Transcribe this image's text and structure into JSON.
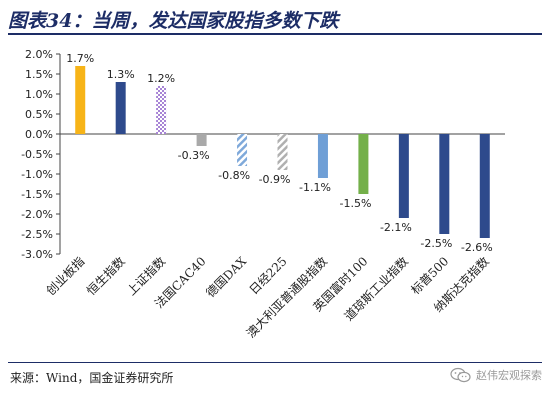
{
  "title": "图表34：当周，发达国家股指多数下跌",
  "source": "来源：Wind，国金证券研究所",
  "watermark": "赵伟宏观探索",
  "colors": {
    "orange": "#f7b418",
    "navy": "#2e4a8c",
    "purple": "#8b5cc8",
    "gray": "#a9a9a9",
    "lightblue": "#7fa9da",
    "silver": "#b0b0b0",
    "skyblue": "#6f9fd6",
    "green": "#74b04a",
    "title": "#1d2d66"
  },
  "chart_data": {
    "type": "bar",
    "categories": [
      "创业板指",
      "恒生指数",
      "上证指数",
      "法国CAC40",
      "德国DAX",
      "日经225",
      "澳大利亚普通股指数",
      "英国富时100",
      "道琼斯工业指数",
      "标普500",
      "纳斯达克指数"
    ],
    "values": [
      1.7,
      1.3,
      1.2,
      -0.3,
      -0.8,
      -0.9,
      -1.1,
      -1.5,
      -2.1,
      -2.5,
      -2.6
    ],
    "data_labels": [
      "1.7%",
      "1.3%",
      "1.2%",
      "-0.3%",
      "-0.8%",
      "-0.9%",
      "-1.1%",
      "-1.5%",
      "-2.1%",
      "-2.5%",
      "-2.6%"
    ],
    "bar_colors": [
      "orange",
      "navy",
      "purple",
      "gray",
      "lightblue",
      "silver",
      "skyblue",
      "green",
      "navy",
      "navy",
      "navy"
    ],
    "bar_patterns": [
      "solid",
      "solid",
      "dots",
      "solid",
      "hatch",
      "hatch",
      "solid",
      "solid",
      "solid",
      "solid",
      "solid"
    ],
    "yticks": [
      2.0,
      1.5,
      1.0,
      0.5,
      0.0,
      -0.5,
      -1.0,
      -1.5,
      -2.0,
      -2.5,
      -3.0
    ],
    "ytick_labels": [
      "2.0%",
      "1.5%",
      "1.0%",
      "0.5%",
      "0.0%",
      "-0.5%",
      "-1.0%",
      "-1.5%",
      "-2.0%",
      "-2.5%",
      "-3.0%"
    ],
    "ylim": [
      -3.0,
      2.0
    ],
    "grid": false,
    "legend": false,
    "xlabel": "",
    "ylabel": ""
  }
}
